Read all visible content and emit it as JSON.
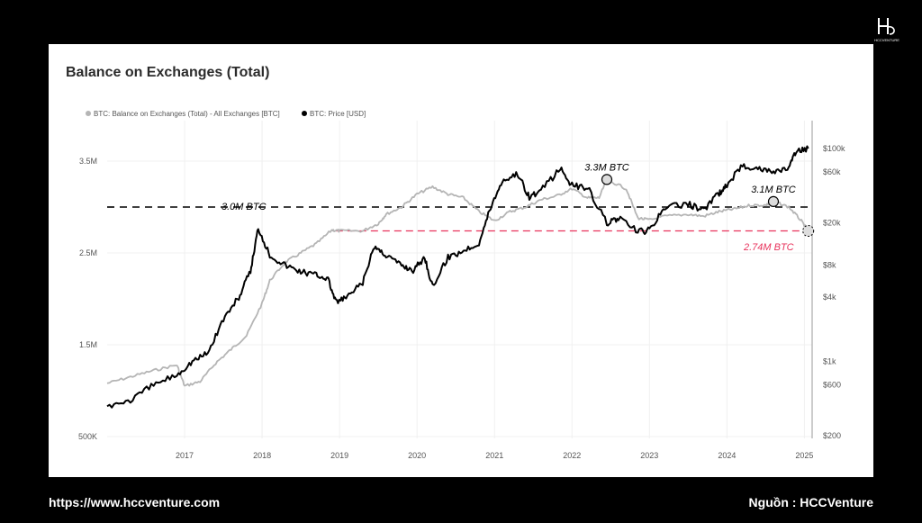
{
  "footer": {
    "url": "https://www.hccventure.com",
    "source": "Nguồn : HCCVenture"
  },
  "logo": {
    "text": "HCCVENTURE"
  },
  "chart_data": {
    "type": "line",
    "title": "Balance on Exchanges (Total)",
    "legend_position": "top-left",
    "grid": true,
    "x_ticks": [
      "2017",
      "2018",
      "2019",
      "2020",
      "2021",
      "2022",
      "2023",
      "2024",
      "2025"
    ],
    "x_range": [
      2016.0,
      2025.1
    ],
    "y_left": {
      "ticks": [
        "3.5M",
        "2.5M",
        "1.5M",
        "500K"
      ],
      "range": [
        0.5,
        3.8
      ],
      "unit": "M BTC"
    },
    "y_right": {
      "scale": "log",
      "ticks": [
        "$100k",
        "$60k",
        "$20k",
        "$8k",
        "$4k",
        "$1k",
        "$600",
        "$200"
      ],
      "range": [
        200,
        130000
      ]
    },
    "series": [
      {
        "name": "BTC: Balance on Exchanges (Total) - All Exchanges [BTC]",
        "axis": "left",
        "color": "#b5b5b5",
        "points": [
          [
            2016.0,
            1.08
          ],
          [
            2016.3,
            1.15
          ],
          [
            2016.6,
            1.22
          ],
          [
            2016.9,
            1.28
          ],
          [
            2017.0,
            1.05
          ],
          [
            2017.2,
            1.1
          ],
          [
            2017.4,
            1.3
          ],
          [
            2017.6,
            1.45
          ],
          [
            2017.8,
            1.6
          ],
          [
            2018.0,
            1.95
          ],
          [
            2018.1,
            2.2
          ],
          [
            2018.3,
            2.4
          ],
          [
            2018.5,
            2.5
          ],
          [
            2018.7,
            2.6
          ],
          [
            2018.9,
            2.75
          ],
          [
            2019.0,
            2.74
          ],
          [
            2019.3,
            2.74
          ],
          [
            2019.5,
            2.82
          ],
          [
            2019.6,
            2.92
          ],
          [
            2019.8,
            3.0
          ],
          [
            2020.0,
            3.14
          ],
          [
            2020.2,
            3.22
          ],
          [
            2020.4,
            3.14
          ],
          [
            2020.6,
            3.1
          ],
          [
            2020.8,
            2.95
          ],
          [
            2021.0,
            2.85
          ],
          [
            2021.2,
            2.95
          ],
          [
            2021.4,
            3.0
          ],
          [
            2021.6,
            3.08
          ],
          [
            2021.8,
            3.12
          ],
          [
            2022.0,
            3.2
          ],
          [
            2022.2,
            3.1
          ],
          [
            2022.35,
            3.1
          ],
          [
            2022.45,
            3.3
          ],
          [
            2022.7,
            3.2
          ],
          [
            2022.85,
            2.88
          ],
          [
            2023.0,
            2.86
          ],
          [
            2023.2,
            2.9
          ],
          [
            2023.5,
            2.92
          ],
          [
            2023.7,
            2.9
          ],
          [
            2023.9,
            2.95
          ],
          [
            2024.1,
            2.98
          ],
          [
            2024.3,
            3.02
          ],
          [
            2024.5,
            3.02
          ],
          [
            2024.6,
            3.06
          ],
          [
            2024.8,
            3.0
          ],
          [
            2024.95,
            2.86
          ],
          [
            2025.05,
            2.74
          ]
        ]
      },
      {
        "name": "BTC: Price [USD]",
        "axis": "right",
        "color": "#000000",
        "points": [
          [
            2016.0,
            380
          ],
          [
            2016.3,
            430
          ],
          [
            2016.6,
            600
          ],
          [
            2016.9,
            750
          ],
          [
            2017.1,
            1000
          ],
          [
            2017.3,
            1200
          ],
          [
            2017.5,
            2500
          ],
          [
            2017.7,
            4000
          ],
          [
            2017.85,
            7000
          ],
          [
            2017.95,
            18000
          ],
          [
            2018.1,
            10000
          ],
          [
            2018.3,
            8000
          ],
          [
            2018.5,
            7000
          ],
          [
            2018.7,
            6500
          ],
          [
            2018.85,
            6000
          ],
          [
            2018.95,
            3600
          ],
          [
            2019.1,
            4000
          ],
          [
            2019.3,
            5500
          ],
          [
            2019.45,
            12000
          ],
          [
            2019.6,
            10000
          ],
          [
            2019.8,
            8000
          ],
          [
            2019.95,
            7200
          ],
          [
            2020.1,
            9500
          ],
          [
            2020.2,
            5000
          ],
          [
            2020.4,
            9500
          ],
          [
            2020.6,
            11000
          ],
          [
            2020.8,
            13000
          ],
          [
            2020.95,
            28000
          ],
          [
            2021.1,
            50000
          ],
          [
            2021.3,
            58000
          ],
          [
            2021.45,
            35000
          ],
          [
            2021.6,
            40000
          ],
          [
            2021.85,
            65000
          ],
          [
            2022.0,
            45000
          ],
          [
            2022.2,
            43000
          ],
          [
            2022.45,
            20000
          ],
          [
            2022.6,
            22000
          ],
          [
            2022.85,
            16500
          ],
          [
            2023.0,
            17000
          ],
          [
            2023.2,
            28000
          ],
          [
            2023.5,
            30000
          ],
          [
            2023.7,
            26500
          ],
          [
            2023.9,
            38000
          ],
          [
            2024.0,
            45000
          ],
          [
            2024.2,
            70000
          ],
          [
            2024.4,
            65000
          ],
          [
            2024.6,
            60000
          ],
          [
            2024.8,
            66000
          ],
          [
            2024.9,
            95000
          ],
          [
            2025.05,
            100000
          ]
        ]
      }
    ],
    "reference_lines": [
      {
        "label": "3.0M BTC",
        "value": 3.0,
        "axis": "left",
        "color": "#000000",
        "style": "dashed"
      },
      {
        "label": "2.74M BTC",
        "value": 2.74,
        "axis": "left",
        "color": "#e8335c",
        "style": "dashed",
        "x_start": 2018.95
      }
    ],
    "annotations": [
      {
        "label": "3.3M BTC",
        "x": 2022.45,
        "y": 3.3
      },
      {
        "label": "3.1M BTC",
        "x": 2024.6,
        "y": 3.06
      }
    ]
  }
}
